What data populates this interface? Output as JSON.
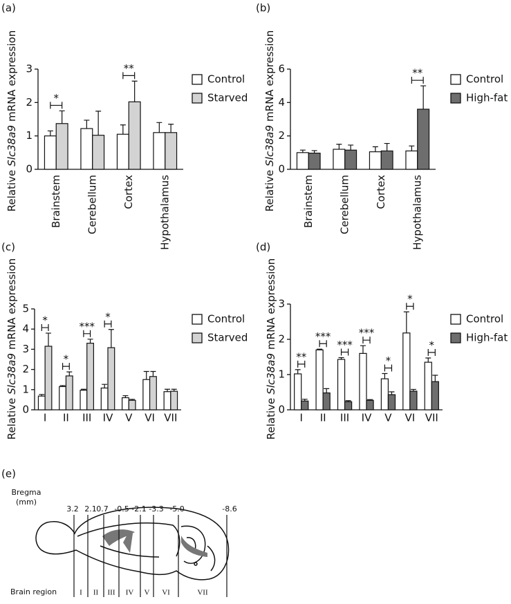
{
  "chart_data": [
    {
      "type": "bar",
      "panel": "(a)",
      "ylabel": [
        "Relative",
        "Slc38a9",
        "mRNA expression"
      ],
      "categories": [
        "Brainstem",
        "Cerebellum",
        "Cortex",
        "Hypothalamus"
      ],
      "series": [
        {
          "name": "Control",
          "color": "#ffffff",
          "values": [
            1.0,
            1.22,
            1.05,
            1.1
          ],
          "errors": [
            0.15,
            0.25,
            0.28,
            0.3
          ]
        },
        {
          "name": "Starved",
          "color": "#d3d3d3",
          "values": [
            1.37,
            1.02,
            2.02,
            1.1
          ],
          "errors": [
            0.38,
            0.72,
            0.62,
            0.25
          ]
        }
      ],
      "significance": [
        "*",
        null,
        "**",
        null
      ],
      "ylim": [
        0,
        3
      ],
      "yticks": [
        0,
        1,
        2,
        3
      ]
    },
    {
      "type": "bar",
      "panel": "(b)",
      "ylabel": [
        "Relative",
        "Slc38a9",
        "mRNA expression"
      ],
      "categories": [
        "Brainstem",
        "Cerebellum",
        "Cortex",
        "Hypothalamus"
      ],
      "series": [
        {
          "name": "Control",
          "color": "#ffffff",
          "values": [
            1.0,
            1.2,
            1.05,
            1.1
          ],
          "errors": [
            0.15,
            0.3,
            0.3,
            0.3
          ]
        },
        {
          "name": "High-fat",
          "color": "#6e6e6e",
          "values": [
            0.97,
            1.15,
            1.1,
            3.6
          ],
          "errors": [
            0.15,
            0.3,
            0.45,
            1.4
          ]
        }
      ],
      "significance": [
        null,
        null,
        null,
        "**"
      ],
      "ylim": [
        0,
        6
      ],
      "yticks": [
        0,
        2,
        4,
        6
      ]
    },
    {
      "type": "bar",
      "panel": "(c)",
      "ylabel": [
        "Relative",
        "Slc38a9",
        "mRNA expression"
      ],
      "categories": [
        "I",
        "II",
        "III",
        "IV",
        "V",
        "VI",
        "VII"
      ],
      "series": [
        {
          "name": "Control",
          "color": "#ffffff",
          "values": [
            0.68,
            1.15,
            0.97,
            1.08,
            0.6,
            1.5,
            0.9
          ],
          "errors": [
            0.08,
            0.05,
            0.05,
            0.18,
            0.1,
            0.4,
            0.12
          ]
        },
        {
          "name": "Starved",
          "color": "#d3d3d3",
          "values": [
            3.15,
            1.68,
            3.3,
            3.08,
            0.47,
            1.65,
            0.92
          ],
          "errors": [
            0.65,
            0.2,
            0.2,
            0.9,
            0.05,
            0.25,
            0.1
          ]
        }
      ],
      "significance": [
        "*",
        "*",
        "***",
        "*",
        null,
        null,
        null
      ],
      "ylim": [
        0,
        5
      ],
      "yticks": [
        0,
        1,
        2,
        3,
        4,
        5
      ]
    },
    {
      "type": "bar",
      "panel": "(d)",
      "ylabel": [
        "Relative",
        "Slc38a9",
        "mRNA expression"
      ],
      "categories": [
        "I",
        "II",
        "III",
        "IV",
        "V",
        "VI",
        "VII"
      ],
      "series": [
        {
          "name": "Control",
          "color": "#ffffff",
          "values": [
            1.02,
            1.7,
            1.43,
            1.6,
            0.88,
            2.18,
            1.35
          ],
          "errors": [
            0.12,
            0.02,
            0.05,
            0.22,
            0.15,
            0.6,
            0.12
          ]
        },
        {
          "name": "High-fat",
          "color": "#6e6e6e",
          "values": [
            0.25,
            0.48,
            0.23,
            0.27,
            0.43,
            0.53,
            0.8
          ],
          "errors": [
            0.05,
            0.12,
            0.03,
            0.02,
            0.08,
            0.05,
            0.18
          ]
        }
      ],
      "significance": [
        "**",
        "***",
        "***",
        "***",
        "*",
        "*",
        "*"
      ],
      "ylim": [
        0,
        3
      ],
      "yticks": [
        0,
        1,
        2,
        3
      ]
    }
  ],
  "diagram": {
    "panel": "(e)",
    "bregma_label": [
      "Bregma",
      "(mm)"
    ],
    "bregma": [
      "3.2",
      "2.1",
      "0.7",
      "-0.5",
      "-2.1",
      "-3.3",
      "-5.0",
      "-8.6"
    ],
    "region_label": "Brain region",
    "regions": [
      "I",
      "II",
      "III",
      "IV",
      "V",
      "VI",
      "VII"
    ]
  }
}
